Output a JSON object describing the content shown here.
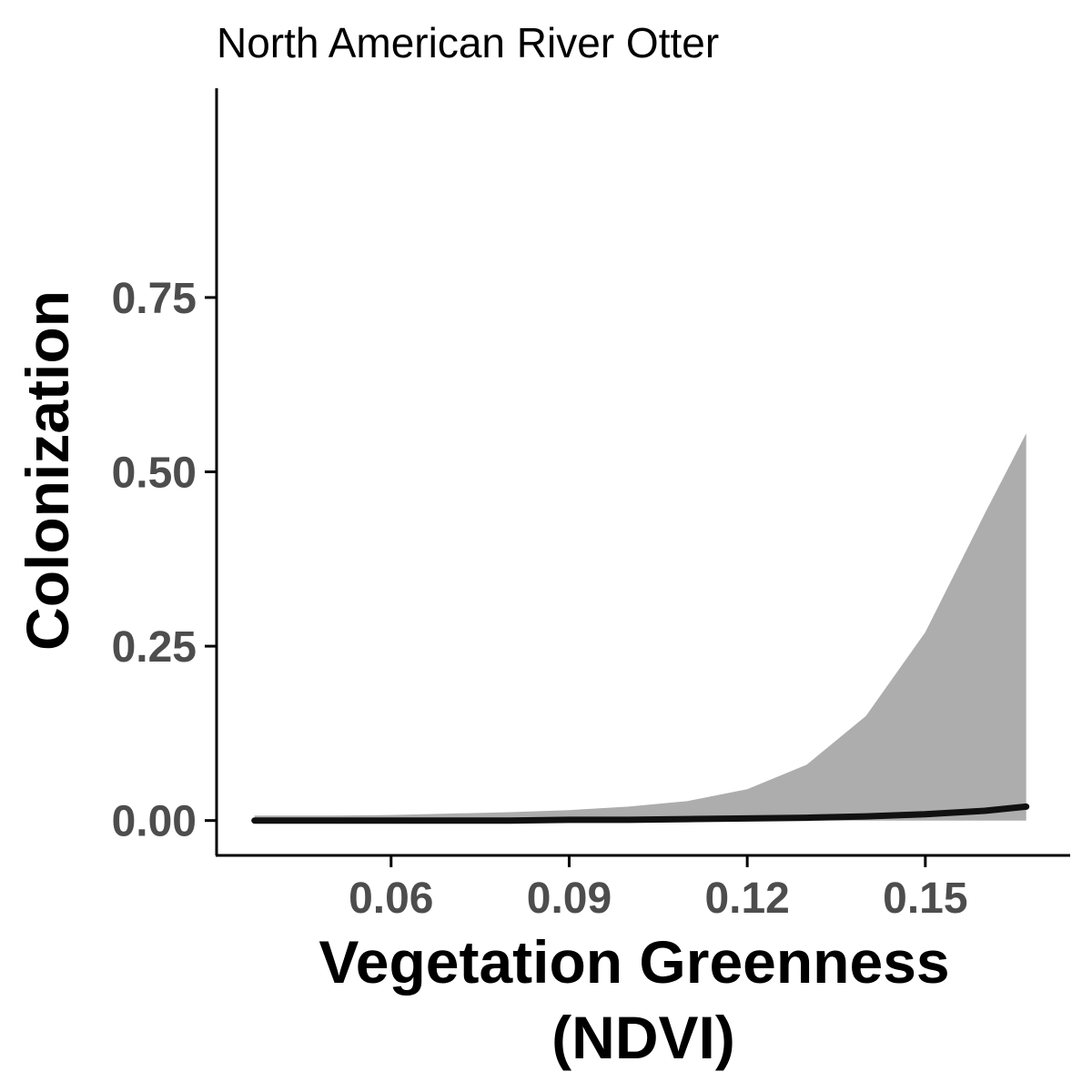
{
  "chart_data": {
    "type": "line",
    "title": "North American River Otter",
    "xlabel_lines": [
      "Vegetation Greenness",
      "(NDVI)"
    ],
    "ylabel": "Colonization",
    "xlim": [
      0.0306,
      0.1744
    ],
    "ylim": [
      -0.05,
      1.05
    ],
    "x_ticks": [
      0.06,
      0.09,
      0.12,
      0.15
    ],
    "x_tick_labels": [
      "0.06",
      "0.09",
      "0.12",
      "0.15"
    ],
    "y_ticks": [
      0.0,
      0.25,
      0.5,
      0.75
    ],
    "y_tick_labels": [
      "0.00",
      "0.25",
      "0.50",
      "0.75"
    ],
    "grid": false,
    "series": [
      {
        "x": [
          0.037,
          0.05,
          0.06,
          0.07,
          0.08,
          0.09,
          0.1,
          0.11,
          0.12,
          0.13,
          0.14,
          0.15,
          0.16,
          0.167
        ],
        "y": [
          0.0,
          0.0,
          0.0,
          0.0,
          0.0,
          0.001,
          0.001,
          0.002,
          0.003,
          0.004,
          0.006,
          0.009,
          0.014,
          0.02
        ],
        "lower": [
          0.0,
          0.0,
          0.0,
          0.0,
          0.0,
          0.0,
          0.0,
          0.0,
          0.0,
          0.0,
          0.0,
          0.0,
          0.0,
          0.0
        ],
        "upper": [
          0.007,
          0.007,
          0.008,
          0.01,
          0.012,
          0.015,
          0.02,
          0.028,
          0.045,
          0.08,
          0.15,
          0.27,
          0.44,
          0.555
        ]
      }
    ],
    "colors": {
      "line": "#111111",
      "ribbon": "#adadad",
      "axis": "#000000",
      "tick_label": "#4d4d4d"
    }
  }
}
